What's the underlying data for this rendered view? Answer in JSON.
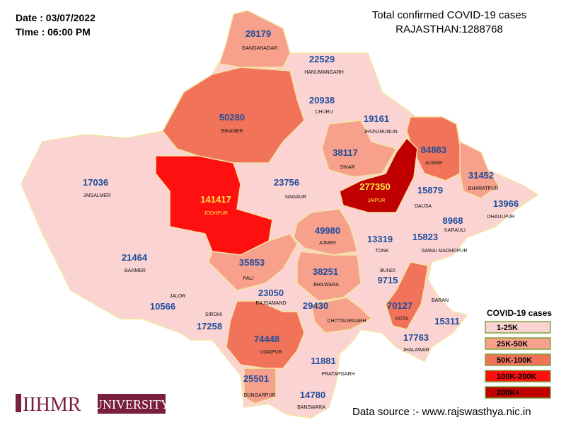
{
  "header": {
    "date": "Date : 03/07/2022",
    "time": "TIme : 06:00 PM",
    "title": "Total confirmed COVID-19 cases",
    "total": "RAJASTHAN:1288768"
  },
  "legend": {
    "title": "COVID-19 cases",
    "items": [
      {
        "label": "1-25K",
        "color": "#fcd3d3"
      },
      {
        "label": "25K-50K",
        "color": "#f7a08c"
      },
      {
        "label": "50K-100K",
        "color": "#f0735a"
      },
      {
        "label": "100K-200K",
        "color": "#ff1010"
      },
      {
        "label": "200K+",
        "color": "#c00000"
      }
    ]
  },
  "districts": [
    {
      "name": "GANGANAGAR",
      "value": 28179,
      "color": "#f7a08c"
    },
    {
      "name": "HANUMANGARH",
      "value": 22529,
      "color": "#fcd3d3"
    },
    {
      "name": "CHURU",
      "value": 20938,
      "color": "#fcd3d3"
    },
    {
      "name": "JHUNJHUNUN",
      "value": 19161,
      "color": "#fcd3d3"
    },
    {
      "name": "BIKANER",
      "value": 50280,
      "color": "#f0735a"
    },
    {
      "name": "SIKAR",
      "value": 38117,
      "color": "#f7a08c"
    },
    {
      "name": "ALWAR",
      "value": 84883,
      "color": "#f0735a"
    },
    {
      "name": "BHARATPUR",
      "value": 31452,
      "color": "#f7a08c"
    },
    {
      "name": "JAIPUR",
      "value": 277350,
      "color": "#c00000"
    },
    {
      "name": "DAUSA",
      "value": 15879,
      "color": "#fcd3d3"
    },
    {
      "name": "DHAULPUR",
      "value": 13966,
      "color": "#fcd3d3"
    },
    {
      "name": "JAISALMER",
      "value": 17036,
      "color": "#fcd3d3"
    },
    {
      "name": "JODHPUR",
      "value": 141417,
      "color": "#ff1010"
    },
    {
      "name": "NAGAUR",
      "value": 23756,
      "color": "#fcd3d3"
    },
    {
      "name": "KARAULI",
      "value": 8968,
      "color": "#fcd3d3"
    },
    {
      "name": "AJMER",
      "value": 49980,
      "color": "#f7a08c"
    },
    {
      "name": "TONK",
      "value": 13319,
      "color": "#fcd3d3"
    },
    {
      "name": "SAWAI MADHOPUR",
      "value": 15823,
      "color": "#fcd3d3"
    },
    {
      "name": "BARMER",
      "value": 21464,
      "color": "#fcd3d3"
    },
    {
      "name": "PALI",
      "value": 35853,
      "color": "#f7a08c"
    },
    {
      "name": "BHILWARA",
      "value": 38251,
      "color": "#f7a08c"
    },
    {
      "name": "BUNDI",
      "value": 9715,
      "color": "#fcd3d3"
    },
    {
      "name": "JALOR",
      "value": 10566,
      "color": "#fcd3d3"
    },
    {
      "name": "SIROHI",
      "value": 17258,
      "color": "#fcd3d3"
    },
    {
      "name": "RAJSAMAND",
      "value": 23050,
      "color": "#fcd3d3"
    },
    {
      "name": "CHITTAURGARH",
      "value": 29430,
      "color": "#f7a08c"
    },
    {
      "name": "KOTA",
      "value": 70127,
      "color": "#f0735a"
    },
    {
      "name": "BARAN",
      "value": 15311,
      "color": "#fcd3d3"
    },
    {
      "name": "UDAIPUR",
      "value": 74448,
      "color": "#f0735a"
    },
    {
      "name": "JHALAWAR",
      "value": 17763,
      "color": "#fcd3d3"
    },
    {
      "name": "PRATAPGARH",
      "value": 11881,
      "color": "#fcd3d3"
    },
    {
      "name": "DUNGARPUR",
      "value": 25501,
      "color": "#f7a08c"
    },
    {
      "name": "BANSWARA",
      "value": 14780,
      "color": "#fcd3d3"
    }
  ],
  "source": "Data source :- www.rajswasthya.nic.in",
  "logo": {
    "name": "IIHMR",
    "suffix": "UNIVERSITY"
  }
}
